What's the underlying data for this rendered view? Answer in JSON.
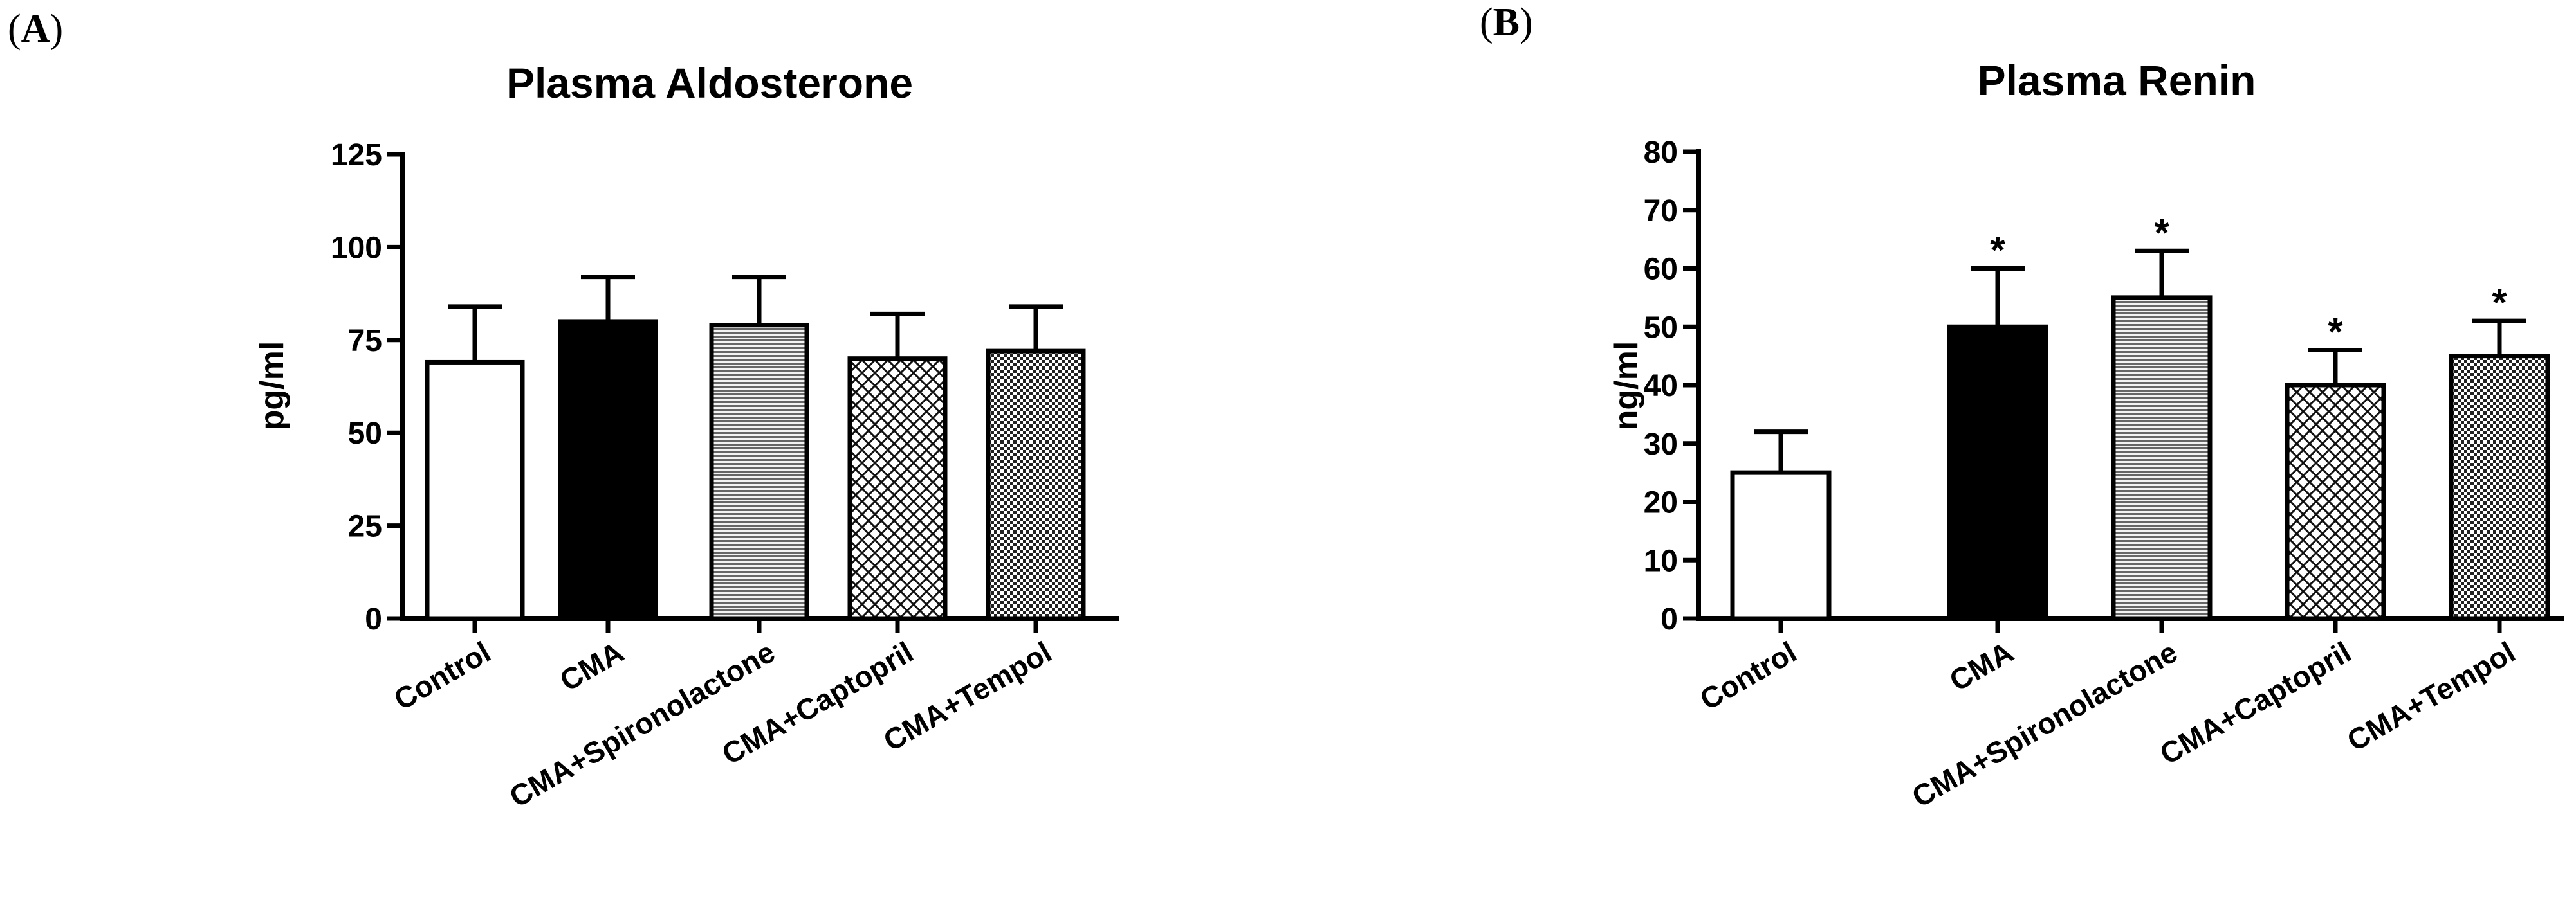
{
  "panels": [
    {
      "label": "A"
    },
    {
      "label": "B"
    }
  ],
  "chart_data": [
    {
      "type": "bar",
      "panel": "A",
      "title": "Plasma Aldosterone",
      "ylabel": "pg/ml",
      "xlabel": "",
      "ylim": [
        0,
        125
      ],
      "yticks": [
        0,
        25,
        50,
        75,
        100,
        125
      ],
      "categories": [
        "Control",
        "CMA",
        "CMA+Spironolactone",
        "CMA+Captopril",
        "CMA+Tempol"
      ],
      "values": [
        69,
        80,
        79,
        70,
        72
      ],
      "errors": [
        15,
        12,
        13,
        12,
        12
      ],
      "significance": [
        "",
        "",
        "",
        "",
        ""
      ],
      "fills": [
        "white",
        "black",
        "hlines",
        "crosshatch",
        "checker"
      ]
    },
    {
      "type": "bar",
      "panel": "B",
      "title": "Plasma Renin",
      "ylabel": "ng/ml",
      "xlabel": "",
      "ylim": [
        0,
        80
      ],
      "yticks": [
        0,
        10,
        20,
        30,
        40,
        50,
        60,
        70,
        80
      ],
      "categories": [
        "Control",
        "CMA",
        "CMA+Spironolactone",
        "CMA+Captopril",
        "CMA+Tempol"
      ],
      "values": [
        25,
        50,
        55,
        40,
        45
      ],
      "errors": [
        7,
        10,
        8,
        6,
        6
      ],
      "significance": [
        "",
        "*",
        "*",
        "*",
        "*"
      ],
      "fills": [
        "white",
        "black",
        "hlines",
        "crosshatch",
        "checker"
      ]
    }
  ]
}
